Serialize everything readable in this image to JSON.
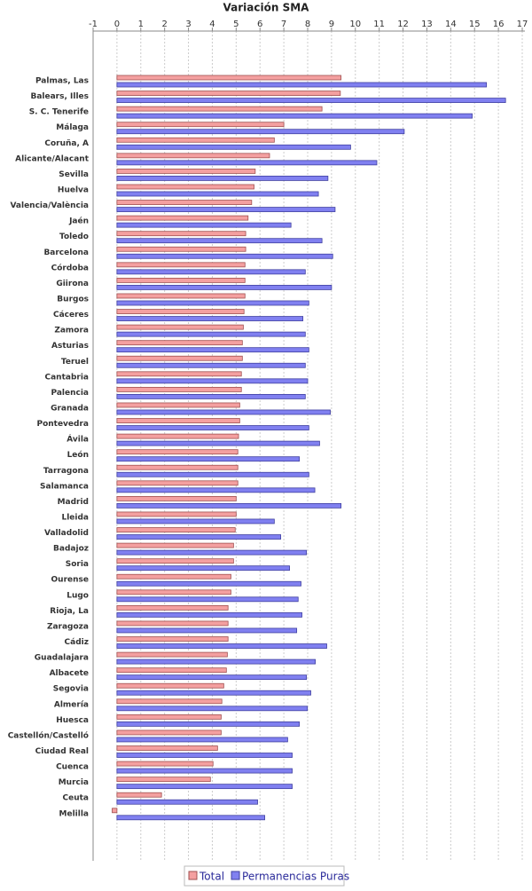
{
  "chart_data": {
    "type": "hbar",
    "title": "Variación SMA",
    "categories": [
      "Palmas, Las",
      "Balears, Illes",
      "S. C. Tenerife",
      "Málaga",
      "Coruña, A",
      "Alicante/Alacant",
      "Sevilla",
      "Huelva",
      "Valencia/València",
      "Jaén",
      "Toledo",
      "Barcelona",
      "Córdoba",
      "Giirona",
      "Burgos",
      "Cáceres",
      "Zamora",
      "Asturias",
      "Teruel",
      "Cantabria",
      "Palencia",
      "Granada",
      "Pontevedra",
      "Ávila",
      "León",
      "Tarragona",
      "Salamanca",
      "Madrid",
      "Lleida",
      "Valladolid",
      "Badajoz",
      "Soria",
      "Ourense",
      "Lugo",
      "Rioja, La",
      "Zaragoza",
      "Cádiz",
      "Guadalajara",
      "Albacete",
      "Segovia",
      "Almería",
      "Huesca",
      "Castellón/Castelló",
      "Ciudad Real",
      "Cuenca",
      "Murcia",
      "Ceuta",
      "Melilla"
    ],
    "series": [
      {
        "name": "Total",
        "color": "#f4a0a0",
        "values": [
          9.4,
          9.37,
          8.6,
          7.0,
          6.6,
          6.4,
          5.8,
          5.75,
          5.65,
          5.5,
          5.4,
          5.4,
          5.37,
          5.37,
          5.37,
          5.33,
          5.3,
          5.26,
          5.26,
          5.22,
          5.22,
          5.15,
          5.15,
          5.1,
          5.07,
          5.07,
          5.07,
          5.0,
          5.0,
          4.96,
          4.89,
          4.89,
          4.78,
          4.78,
          4.66,
          4.66,
          4.66,
          4.63,
          4.59,
          4.48,
          4.4,
          4.37,
          4.37,
          4.22,
          4.03,
          3.92,
          1.87,
          -0.2
        ]
      },
      {
        "name": "Permanencias Puras",
        "color": "#8080f0",
        "values": [
          15.5,
          16.3,
          14.9,
          12.05,
          9.8,
          10.9,
          8.85,
          8.45,
          9.15,
          7.3,
          8.6,
          9.05,
          7.9,
          9.0,
          8.05,
          7.8,
          7.9,
          8.05,
          7.9,
          8.0,
          7.9,
          8.95,
          8.05,
          8.5,
          7.65,
          8.05,
          8.3,
          9.4,
          6.6,
          6.87,
          7.95,
          7.24,
          7.72,
          7.6,
          7.76,
          7.54,
          8.8,
          8.32,
          7.95,
          8.13,
          7.99,
          7.65,
          7.16,
          7.35,
          7.35,
          7.35,
          5.9,
          6.2
        ]
      }
    ],
    "xlim": [
      -1,
      17
    ],
    "xticks": [
      -1,
      0,
      1,
      2,
      3,
      4,
      5,
      6,
      7,
      8,
      9,
      10,
      11,
      12,
      13,
      14,
      15,
      16,
      17
    ],
    "grid": true
  }
}
